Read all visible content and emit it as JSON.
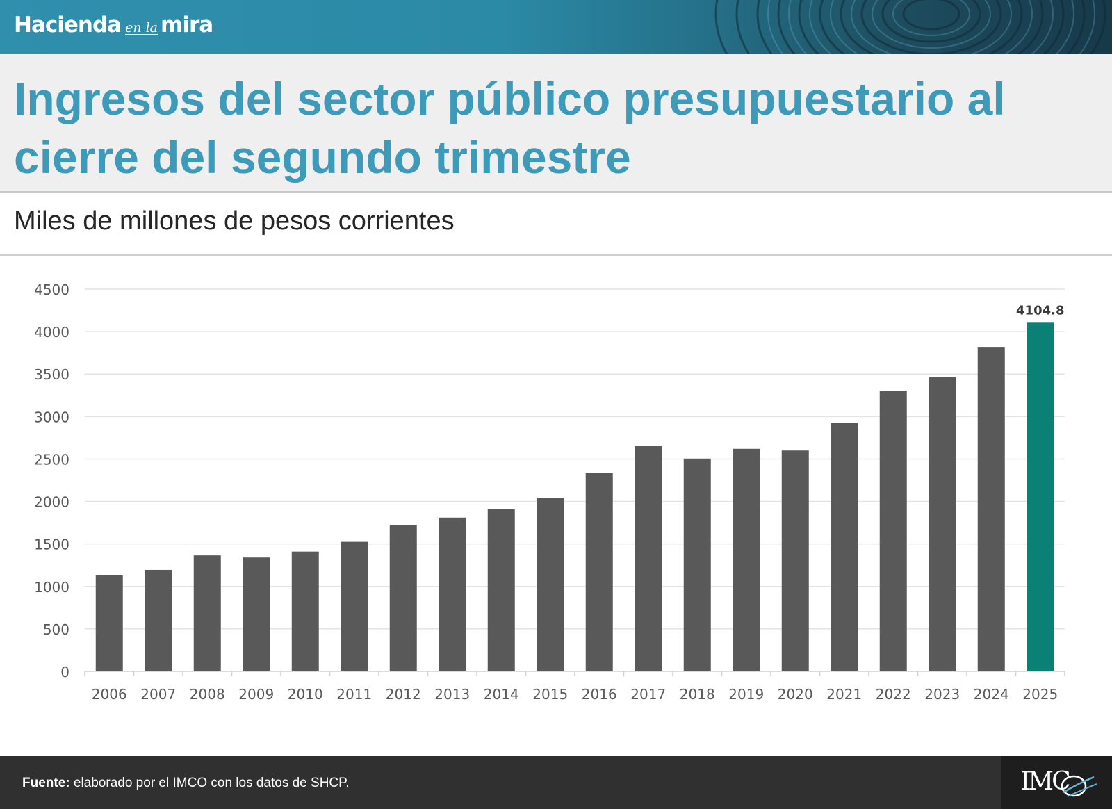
{
  "brand": {
    "part1": "Hacienda",
    "part2": "en la",
    "part3": "mira"
  },
  "title": "Ingresos del sector público presupuestario al cierre del segundo trimestre",
  "subtitle": "Miles de millones de pesos corrientes",
  "footer": {
    "source_label": "Fuente:",
    "source_text": " elaborado por el IMCO con los datos de SHCP.",
    "logo_text": "IMC"
  },
  "colors": {
    "bar": "#595959",
    "highlight": "#0b8074",
    "grid": "#e3e3e3",
    "axis_text": "#595959"
  },
  "chart_data": {
    "type": "bar",
    "title": "",
    "xlabel": "",
    "ylabel": "",
    "ylim": [
      0,
      4500
    ],
    "yticks": [
      0,
      500,
      1000,
      1500,
      2000,
      2500,
      3000,
      3500,
      4000,
      4500
    ],
    "categories": [
      "2006",
      "2007",
      "2008",
      "2009",
      "2010",
      "2011",
      "2012",
      "2013",
      "2014",
      "2015",
      "2016",
      "2017",
      "2018",
      "2019",
      "2020",
      "2021",
      "2022",
      "2023",
      "2024",
      "2025"
    ],
    "values": [
      1130,
      1195,
      1365,
      1340,
      1410,
      1525,
      1725,
      1810,
      1910,
      2045,
      2335,
      2655,
      2505,
      2620,
      2600,
      2925,
      3305,
      3465,
      3820,
      4104.8
    ],
    "highlight_index": 19,
    "data_labels": [
      {
        "index": 19,
        "text": "4104.8"
      }
    ],
    "grid": true,
    "legend": "none"
  }
}
